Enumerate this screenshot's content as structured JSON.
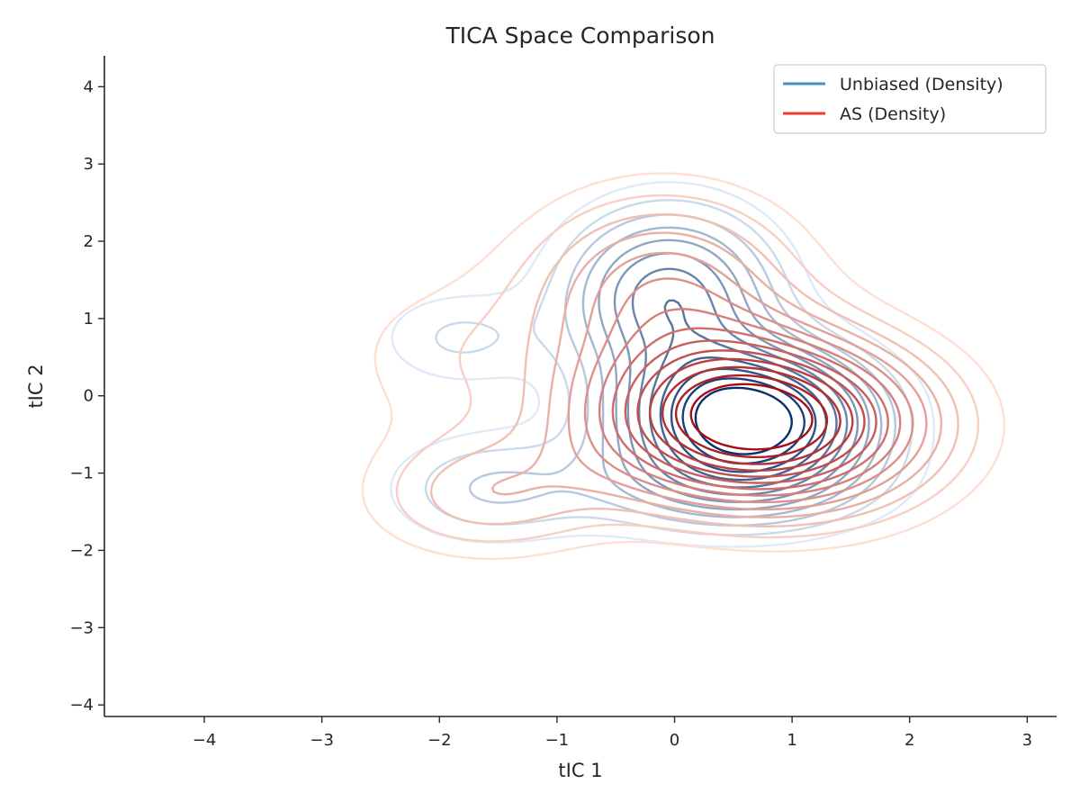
{
  "chart_data": {
    "type": "contour",
    "title": "TICA Space Comparison",
    "xlabel": "tIC 1",
    "ylabel": "tIC 2",
    "xlim": [
      -4.85,
      3.25
    ],
    "ylim": [
      -4.15,
      4.4
    ],
    "xticks": [
      -4,
      -3,
      -2,
      -1,
      0,
      1,
      2,
      3
    ],
    "yticks": [
      -4,
      -3,
      -2,
      -1,
      0,
      1,
      2,
      3,
      4
    ],
    "xtick_labels": [
      "−4",
      "−3",
      "−2",
      "−1",
      "0",
      "1",
      "2",
      "3"
    ],
    "ytick_labels": [
      "−4",
      "−3",
      "−2",
      "−1",
      "0",
      "1",
      "2",
      "3",
      "4"
    ],
    "grid": false,
    "legend_position": "top-right",
    "legend": [
      {
        "label": "Unbiased (Density)",
        "color": "#4292c6"
      },
      {
        "label": "AS (Density)",
        "color": "#ef3b2c"
      }
    ],
    "series": [
      {
        "name": "Unbiased (Density)",
        "colormap": "Blues",
        "color_light": "#deebf7",
        "color_dark": "#08306b",
        "levels": 12,
        "components": [
          {
            "cx": 0.62,
            "cy": -0.3,
            "sx": 0.7,
            "sy": 0.62,
            "w": 1.0
          },
          {
            "cx": -0.05,
            "cy": 1.3,
            "sx": 0.6,
            "sy": 0.75,
            "w": 0.55
          },
          {
            "cx": -1.6,
            "cy": -1.2,
            "sx": 0.6,
            "sy": 0.5,
            "w": 0.2
          },
          {
            "cx": -1.85,
            "cy": 0.75,
            "sx": 0.5,
            "sy": 0.45,
            "w": 0.15
          },
          {
            "cx": 0.4,
            "cy": -1.2,
            "sx": 0.9,
            "sy": 0.45,
            "w": 0.22
          }
        ]
      },
      {
        "name": "AS (Density)",
        "colormap": "Reds",
        "color_light": "#fee0d2",
        "color_dark": "#a50f15",
        "levels": 14,
        "components": [
          {
            "cx": 0.62,
            "cy": -0.3,
            "sx": 0.9,
            "sy": 0.72,
            "w": 1.0
          },
          {
            "cx": -0.1,
            "cy": 1.4,
            "sx": 0.8,
            "sy": 0.85,
            "w": 0.35
          },
          {
            "cx": -1.6,
            "cy": -1.3,
            "sx": 0.7,
            "sy": 0.55,
            "w": 0.22
          },
          {
            "cx": -2.0,
            "cy": 0.5,
            "sx": 0.7,
            "sy": 0.8,
            "w": 0.1
          },
          {
            "cx": 1.4,
            "cy": -0.6,
            "sx": 0.8,
            "sy": 0.8,
            "w": 0.12
          }
        ]
      }
    ]
  }
}
